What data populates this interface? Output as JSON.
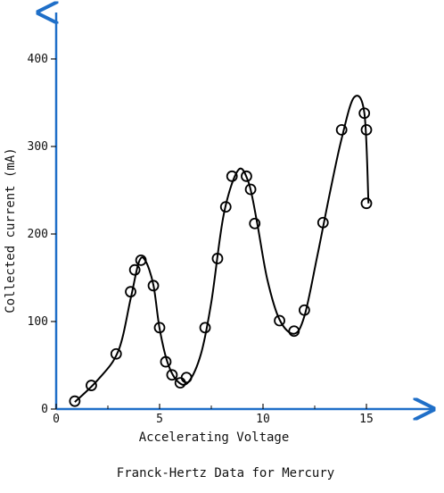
{
  "chart_data": {
    "type": "scatter",
    "title": "",
    "caption": "Franck-Hertz Data for Mercury",
    "xlabel": "Accelerating Voltage",
    "ylabel": "Collected current (mA)",
    "xlim": [
      0,
      18
    ],
    "ylim": [
      0,
      450
    ],
    "xticks": [
      0,
      5,
      10,
      15
    ],
    "yticks": [
      0,
      100,
      200,
      300,
      400
    ],
    "x_tick_labels": [
      "0",
      "5",
      "10",
      "15"
    ],
    "y_tick_labels": [
      "0",
      "100",
      "200",
      "300",
      "400"
    ],
    "grid": false,
    "colors": {
      "axis": "#1f6fc8",
      "data": "#000000"
    },
    "series": [
      {
        "marker": "open-circle",
        "x": [
          0.9,
          1.7,
          2.9,
          3.6,
          3.8,
          4.1,
          4.7,
          5.0,
          5.3,
          5.6,
          6.0,
          6.3,
          7.2,
          7.8,
          8.2,
          8.5,
          9.2,
          9.4,
          9.6,
          10.8,
          11.5,
          12.0,
          12.9,
          13.8,
          14.9,
          15.0,
          15.0
        ],
        "y": [
          9,
          27,
          63,
          134,
          159,
          170,
          141,
          93,
          54,
          39,
          30,
          36,
          93,
          172,
          231,
          266,
          266,
          251,
          212,
          101,
          89,
          113,
          213,
          319,
          338,
          319,
          235
        ]
      },
      {
        "marker": "none",
        "line": "smooth",
        "x": [
          0.9,
          2.0,
          3.0,
          3.6,
          4.0,
          4.3,
          4.7,
          5.0,
          5.4,
          5.9,
          6.4,
          7.0,
          7.5,
          8.1,
          8.8,
          9.3,
          9.7,
          10.2,
          10.8,
          11.5,
          12.0,
          12.6,
          13.2,
          13.8,
          14.4,
          14.9,
          15.1
        ],
        "y": [
          8,
          33,
          66,
          126,
          168,
          170,
          142,
          92,
          52,
          31,
          31,
          63,
          122,
          222,
          273,
          259,
          215,
          149,
          102,
          86,
          106,
          172,
          243,
          309,
          356,
          338,
          235
        ]
      }
    ]
  }
}
